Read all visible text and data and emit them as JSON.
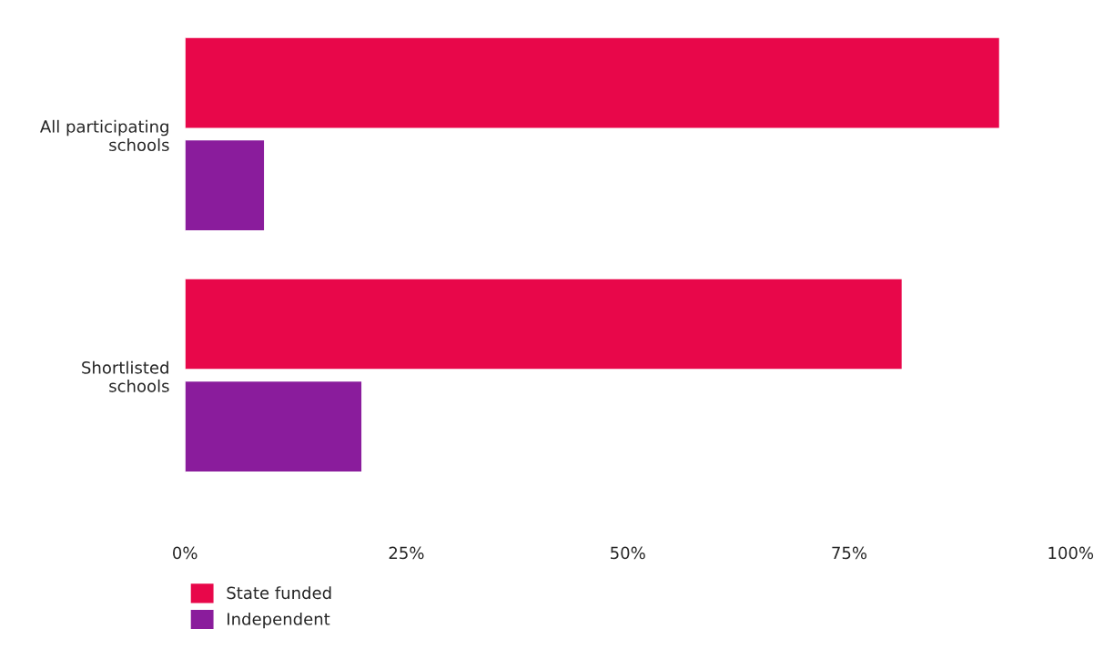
{
  "chart_data": {
    "type": "bar",
    "orientation": "horizontal",
    "categories": [
      "All participating\nschools",
      "Shortlisted\nschools"
    ],
    "series": [
      {
        "name": "State funded",
        "color": "#e8074a",
        "values": [
          92,
          81
        ]
      },
      {
        "name": "Independent",
        "color": "#8a1c9c",
        "values": [
          9,
          20
        ]
      }
    ],
    "xlim": [
      0,
      100
    ],
    "xticks": [
      {
        "value": 0,
        "label": "0%"
      },
      {
        "value": 25,
        "label": "25%"
      },
      {
        "value": 50,
        "label": "50%"
      },
      {
        "value": 75,
        "label": "75%"
      },
      {
        "value": 100,
        "label": "100%"
      }
    ],
    "grid": false,
    "legend": "bottom left"
  }
}
